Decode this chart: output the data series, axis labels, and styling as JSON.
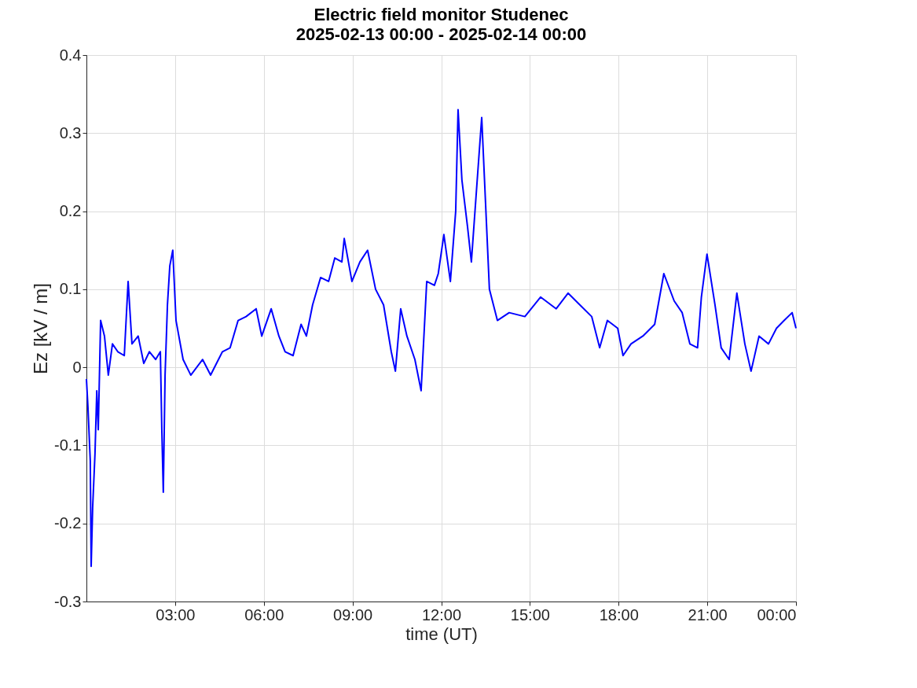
{
  "chart_data": {
    "type": "line",
    "title": "Electric field monitor Studenec",
    "subtitle": "2025-02-13 00:00 - 2025-02-14 00:00",
    "xlabel": "time (UT)",
    "ylabel": "Ez [kV / m]",
    "x": [
      0,
      0.05,
      0.13,
      0.16,
      0.21,
      0.29,
      0.35,
      0.4,
      0.48,
      0.61,
      0.74,
      0.88,
      1.06,
      1.28,
      1.41,
      1.54,
      1.75,
      1.94,
      2.13,
      2.34,
      2.5,
      2.55,
      2.6,
      2.66,
      2.74,
      2.82,
      2.92,
      3.03,
      3.27,
      3.53,
      3.93,
      4.2,
      4.6,
      4.86,
      5.13,
      5.4,
      5.74,
      5.93,
      6.25,
      6.51,
      6.72,
      6.99,
      7.26,
      7.44,
      7.65,
      7.92,
      8.19,
      8.4,
      8.64,
      8.72,
      8.98,
      9.25,
      9.51,
      9.78,
      10.05,
      10.31,
      10.45,
      10.63,
      10.84,
      11.11,
      11.32,
      11.51,
      11.77,
      11.9,
      12.09,
      12.31,
      12.49,
      12.57,
      12.7,
      12.89,
      13.02,
      13.18,
      13.37,
      13.5,
      13.63,
      13.9,
      14.3,
      14.83,
      15.36,
      15.89,
      16.29,
      16.69,
      17.09,
      17.36,
      17.62,
      17.97,
      18.15,
      18.42,
      18.82,
      19.22,
      19.53,
      19.88,
      20.15,
      20.41,
      20.67,
      20.8,
      20.99,
      21.26,
      21.47,
      21.74,
      22.0,
      22.27,
      22.48,
      22.75,
      23.07,
      23.34,
      23.6,
      23.87,
      24
    ],
    "series": [
      {
        "color": "#0000ff",
        "values": [
          -0.015,
          -0.05,
          -0.12,
          -0.255,
          -0.18,
          -0.11,
          -0.03,
          -0.08,
          0.06,
          0.04,
          -0.01,
          0.03,
          0.02,
          0.015,
          0.11,
          0.03,
          0.04,
          0.005,
          0.02,
          0.01,
          0.02,
          -0.08,
          -0.16,
          -0.01,
          0.08,
          0.13,
          0.15,
          0.06,
          0.01,
          -0.01,
          0.01,
          -0.01,
          0.02,
          0.025,
          0.06,
          0.065,
          0.075,
          0.04,
          0.075,
          0.04,
          0.02,
          0.015,
          0.055,
          0.04,
          0.08,
          0.115,
          0.11,
          0.14,
          0.135,
          0.165,
          0.11,
          0.135,
          0.15,
          0.1,
          0.08,
          0.02,
          -0.005,
          0.075,
          0.04,
          0.01,
          -0.03,
          0.11,
          0.105,
          0.12,
          0.17,
          0.11,
          0.2,
          0.33,
          0.24,
          0.18,
          0.135,
          0.22,
          0.32,
          0.21,
          0.1,
          0.06,
          0.07,
          0.065,
          0.09,
          0.075,
          0.095,
          0.08,
          0.065,
          0.025,
          0.06,
          0.05,
          0.015,
          0.03,
          0.04,
          0.055,
          0.12,
          0.085,
          0.07,
          0.03,
          0.025,
          0.09,
          0.145,
          0.08,
          0.025,
          0.01,
          0.095,
          0.03,
          -0.005,
          0.04,
          0.03,
          0.05,
          0.06,
          0.07,
          0.05
        ]
      }
    ],
    "xlim": [
      0,
      24
    ],
    "xticks": [
      {
        "value": 3,
        "label": "03:00"
      },
      {
        "value": 6,
        "label": "06:00"
      },
      {
        "value": 9,
        "label": "09:00"
      },
      {
        "value": 12,
        "label": "12:00"
      },
      {
        "value": 15,
        "label": "15:00"
      },
      {
        "value": 18,
        "label": "18:00"
      },
      {
        "value": 21,
        "label": "21:00"
      },
      {
        "value": 24,
        "label": "00:00"
      }
    ],
    "ylim": [
      -0.3,
      0.4
    ],
    "yticks": [
      -0.3,
      -0.2,
      -0.1,
      0,
      0.1,
      0.2,
      0.3,
      0.4
    ],
    "grid": true,
    "line_style": "solid",
    "marker": "none"
  }
}
